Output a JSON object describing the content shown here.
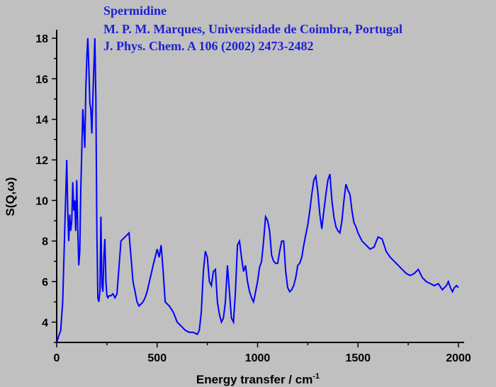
{
  "chart_data": {
    "type": "line",
    "annotations": [
      "Spermidine",
      "M. P. M. Marques, Universidade de Coimbra, Portugal",
      "J. Phys. Chem. A 106 (2002) 2473-2482"
    ],
    "xlabel": "Energy transfer / cm",
    "xlabel_sup": "-1",
    "ylabel": "S(Q,ω)",
    "xlim": [
      0,
      2000
    ],
    "ylim": [
      3,
      18
    ],
    "xticks": [
      "0",
      "500",
      "1000",
      "1500",
      "2000"
    ],
    "yticks": [
      "4",
      "6",
      "8",
      "10",
      "12",
      "14",
      "16",
      "18"
    ],
    "line_color": "#0000ff",
    "series": [
      {
        "x": [
          0,
          10,
          20,
          30,
          40,
          50,
          55,
          60,
          65,
          70,
          75,
          80,
          85,
          90,
          95,
          100,
          105,
          110,
          115,
          120,
          130,
          140,
          145,
          150,
          155,
          160,
          165,
          170,
          175,
          180,
          185,
          190,
          195,
          200,
          205,
          210,
          215,
          220,
          225,
          230,
          235,
          240,
          245,
          250,
          255,
          260,
          265,
          270,
          280,
          290,
          300,
          320,
          340,
          360,
          380,
          390,
          400,
          410,
          420,
          430,
          440,
          450,
          480,
          500,
          510,
          520,
          530,
          540,
          560,
          580,
          600,
          620,
          640,
          660,
          680,
          700,
          710,
          720,
          730,
          740,
          750,
          760,
          770,
          780,
          790,
          800,
          810,
          820,
          830,
          840,
          850,
          860,
          870,
          880,
          890,
          900,
          910,
          920,
          930,
          940,
          950,
          960,
          970,
          980,
          990,
          1000,
          1010,
          1020,
          1030,
          1040,
          1050,
          1060,
          1070,
          1080,
          1090,
          1100,
          1110,
          1120,
          1130,
          1140,
          1150,
          1160,
          1170,
          1180,
          1190,
          1200,
          1210,
          1220,
          1230,
          1240,
          1250,
          1260,
          1270,
          1280,
          1290,
          1300,
          1310,
          1320,
          1330,
          1340,
          1350,
          1360,
          1370,
          1380,
          1390,
          1400,
          1410,
          1420,
          1430,
          1440,
          1450,
          1460,
          1470,
          1480,
          1490,
          1500,
          1520,
          1540,
          1560,
          1580,
          1600,
          1620,
          1640,
          1660,
          1680,
          1700,
          1720,
          1740,
          1760,
          1780,
          1800,
          1820,
          1840,
          1860,
          1880,
          1900,
          1920,
          1940,
          1950,
          1960,
          1970,
          1980,
          1990,
          2000
        ],
        "y": [
          3.0,
          3.3,
          3.6,
          5.0,
          8.5,
          12.0,
          9.5,
          8.0,
          9.3,
          8.5,
          9.0,
          10.9,
          9.5,
          10.0,
          8.5,
          11.0,
          8.5,
          6.8,
          7.5,
          10.5,
          14.5,
          12.6,
          15.5,
          17.0,
          18.0,
          16.5,
          14.8,
          14.5,
          13.3,
          15.0,
          16.5,
          18.0,
          15.0,
          8.5,
          5.2,
          5.0,
          5.5,
          9.2,
          5.8,
          5.5,
          7.2,
          8.1,
          6.0,
          5.3,
          5.2,
          5.3,
          5.3,
          5.3,
          5.4,
          5.2,
          5.4,
          8.0,
          8.2,
          8.4,
          6.0,
          5.5,
          5.0,
          4.8,
          4.9,
          5.0,
          5.2,
          5.5,
          6.8,
          7.6,
          7.2,
          7.8,
          6.5,
          5.0,
          4.8,
          4.5,
          4.0,
          3.8,
          3.6,
          3.5,
          3.5,
          3.4,
          3.6,
          4.5,
          6.5,
          7.5,
          7.2,
          6.0,
          5.8,
          6.5,
          6.6,
          5.0,
          4.4,
          4.0,
          4.2,
          5.0,
          6.8,
          5.5,
          4.2,
          4.0,
          5.5,
          7.8,
          8.0,
          7.2,
          6.5,
          6.8,
          6.0,
          5.5,
          5.2,
          5.0,
          5.5,
          6.0,
          6.7,
          7.0,
          8.0,
          9.2,
          9.0,
          8.5,
          7.3,
          7.0,
          6.9,
          6.9,
          7.5,
          8.0,
          8.0,
          6.5,
          5.7,
          5.5,
          5.6,
          5.8,
          6.2,
          6.8,
          6.9,
          7.2,
          7.8,
          8.3,
          8.8,
          9.5,
          10.3,
          11.0,
          11.2,
          10.4,
          9.3,
          8.6,
          9.5,
          10.3,
          11.0,
          11.3,
          10.0,
          9.2,
          8.7,
          8.5,
          8.4,
          9.0,
          10.0,
          10.8,
          10.5,
          10.3,
          9.5,
          8.9,
          8.7,
          8.4,
          8.0,
          7.8,
          7.6,
          7.7,
          8.2,
          8.1,
          7.5,
          7.2,
          7.0,
          6.8,
          6.6,
          6.4,
          6.3,
          6.4,
          6.6,
          6.2,
          6.0,
          5.9,
          5.8,
          5.9,
          5.6,
          5.8,
          6.0,
          5.7,
          5.5,
          5.7,
          5.8,
          5.7
        ]
      }
    ]
  }
}
